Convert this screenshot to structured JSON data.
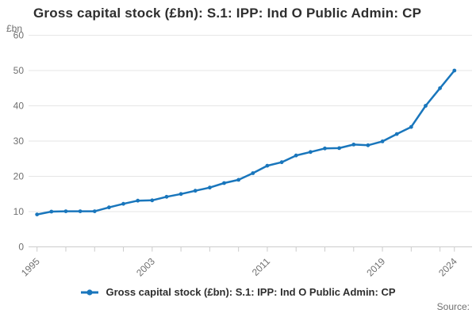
{
  "title": "Gross capital stock (£bn): S.1: IPP: Ind O Public Admin: CP",
  "y_unit": "£bn",
  "legend": {
    "label": "Gross capital stock (£bn): S.1: IPP: Ind O Public Admin: CP"
  },
  "source_label": "Source:",
  "colors": {
    "line": "#1976bc",
    "grid": "#e6e6e6",
    "axis": "#cccccc",
    "tick": "#cccccc",
    "text_muted": "#707070",
    "text_dark": "#2e2e2e"
  },
  "chart_data": {
    "type": "line",
    "title": "Gross capital stock (£bn): S.1: IPP: Ind O Public Admin: CP",
    "xlabel": "",
    "ylabel": "£bn",
    "ylim": [
      0,
      60
    ],
    "y_ticks": [
      0,
      10,
      20,
      30,
      40,
      50,
      60
    ],
    "x_range": [
      1995,
      2024
    ],
    "x_labeled_ticks": [
      1995,
      2003,
      2011,
      2019,
      2024
    ],
    "x_minor_tick_step": 2,
    "grid": true,
    "legend_position": "bottom",
    "x": [
      1995,
      1996,
      1997,
      1998,
      1999,
      2000,
      2001,
      2002,
      2003,
      2004,
      2005,
      2006,
      2007,
      2008,
      2009,
      2010,
      2011,
      2012,
      2013,
      2014,
      2015,
      2016,
      2017,
      2018,
      2019,
      2020,
      2021,
      2022,
      2023,
      2024
    ],
    "series": [
      {
        "name": "Gross capital stock (£bn): S.1: IPP: Ind O Public Admin: CP",
        "values": [
          9.2,
          10.0,
          10.1,
          10.1,
          10.1,
          11.2,
          12.2,
          13.1,
          13.2,
          14.2,
          15.0,
          15.9,
          16.8,
          18.1,
          19.0,
          20.9,
          23.0,
          24.0,
          25.9,
          26.9,
          27.9,
          28.0,
          29.0,
          28.8,
          29.9,
          32.0,
          34.0,
          40.0,
          45.0,
          50.0
        ]
      }
    ]
  }
}
